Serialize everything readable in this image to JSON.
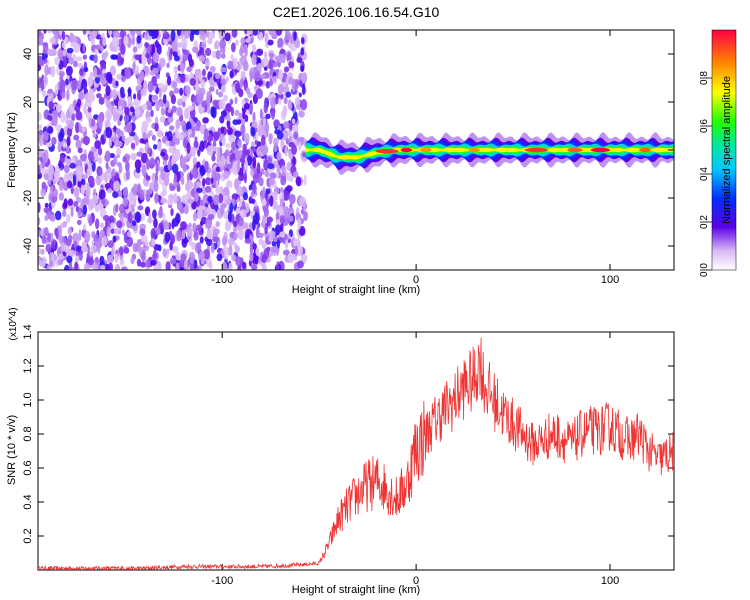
{
  "title": "C2E1.2026.106.16.54.G10",
  "chart_data": [
    {
      "type": "heatmap",
      "xlabel": "Height of straight line (km)",
      "ylabel": "Frequency (Hz)",
      "xlim": [
        -195,
        133
      ],
      "ylim": [
        -50,
        50
      ],
      "x_ticks": [
        -100,
        0,
        100
      ],
      "y_ticks": [
        -40,
        -20,
        0,
        20,
        40
      ],
      "colorbar": {
        "label": "Normalized spectral amplitude",
        "range": [
          0,
          1
        ],
        "ticks": [
          0.0,
          0.2,
          0.4,
          0.6,
          0.8
        ]
      },
      "noise_region_end_km": -57,
      "ridge": {
        "description_points": [
          [
            -57,
            0
          ],
          [
            -50,
            0
          ],
          [
            -40,
            -3
          ],
          [
            -30,
            -3
          ],
          [
            -20,
            -1
          ],
          [
            -10,
            0
          ],
          [
            0,
            0
          ],
          [
            20,
            0
          ],
          [
            60,
            0
          ],
          [
            100,
            0
          ],
          [
            133,
            0
          ]
        ],
        "peak_amplitude": 1.0
      }
    },
    {
      "type": "line",
      "xlabel": "Height of straight line (km)",
      "ylabel": "SNR (10 * v/v)",
      "y_multiplier": "(x10^4)",
      "xlim": [
        -195,
        133
      ],
      "ylim": [
        0,
        1.4
      ],
      "x_ticks": [
        -100,
        0,
        100
      ],
      "y_ticks": [
        0.2,
        0.4,
        0.6,
        0.8,
        1.0,
        1.2,
        1.4
      ],
      "color": "#ee3333",
      "series": [
        {
          "name": "",
          "x": [
            -195,
            -180,
            -160,
            -140,
            -120,
            -100,
            -80,
            -60,
            -50,
            -45,
            -40,
            -35,
            -30,
            -25,
            -20,
            -15,
            -10,
            -5,
            0,
            5,
            10,
            15,
            20,
            25,
            30,
            33,
            35,
            40,
            45,
            50,
            55,
            60,
            65,
            70,
            75,
            80,
            85,
            90,
            95,
            100,
            105,
            110,
            115,
            120,
            125,
            130,
            133
          ],
          "y": [
            0.01,
            0.01,
            0.01,
            0.01,
            0.02,
            0.02,
            0.02,
            0.03,
            0.04,
            0.15,
            0.3,
            0.38,
            0.45,
            0.5,
            0.52,
            0.48,
            0.42,
            0.5,
            0.72,
            0.8,
            0.88,
            0.95,
            1.0,
            1.08,
            1.12,
            1.25,
            1.1,
            1.0,
            0.92,
            0.86,
            0.8,
            0.74,
            0.76,
            0.8,
            0.78,
            0.74,
            0.8,
            0.82,
            0.82,
            0.85,
            0.8,
            0.76,
            0.8,
            0.7,
            0.65,
            0.68,
            0.7
          ]
        }
      ]
    }
  ]
}
